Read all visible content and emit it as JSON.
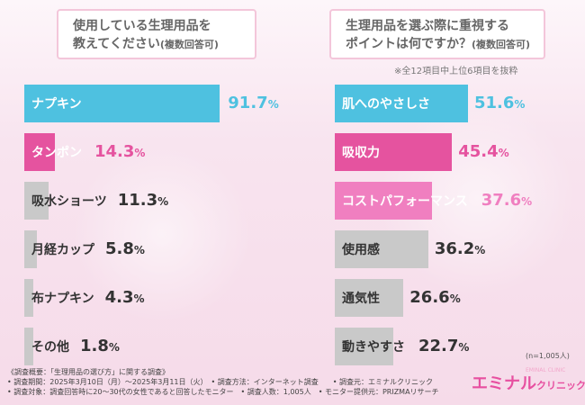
{
  "colors": {
    "blue": "#4ec1e0",
    "magenta": "#e5539f",
    "pink": "#f07fc0",
    "gray": "#c9c9c9",
    "white": "#ffffff",
    "dark_text": "#333333"
  },
  "chart_data": [
    {
      "type": "bar",
      "orientation": "horizontal",
      "title_line1": "使用している生理用品を",
      "title_line2": "教えてください",
      "title_suffix": "(複数回答可)",
      "categories": [
        "ナプキン",
        "タンポン",
        "吸水ショーツ",
        "月経カップ",
        "布ナプキン",
        "その他"
      ],
      "values": [
        91.7,
        14.3,
        11.3,
        5.8,
        4.3,
        1.8
      ],
      "value_labels": [
        "91.7",
        "14.3",
        "11.3",
        "5.8",
        "4.3",
        "1.8"
      ],
      "unit": "%",
      "xlim": [
        0,
        100
      ]
    },
    {
      "type": "bar",
      "orientation": "horizontal",
      "title_line1": "生理用品を選ぶ際に重視する",
      "title_line2": "ポイントは何ですか？",
      "title_suffix": "(複数回答可)",
      "note": "※全12項目中上位6項目を抜粋",
      "categories": [
        "肌へのやさしさ",
        "吸収力",
        "コストパフォーマンス",
        "使用感",
        "通気性",
        "動きやすさ"
      ],
      "values": [
        51.6,
        45.4,
        37.6,
        36.2,
        26.6,
        22.7
      ],
      "value_labels": [
        "51.6",
        "45.4",
        "37.6",
        "36.2",
        "26.6",
        "22.7"
      ],
      "unit": "%",
      "xlim": [
        0,
        100
      ]
    }
  ],
  "sample_note": "(n=1,005人)",
  "survey": {
    "line1": "《調査概要：「生理用品の選び方」に関する調査》",
    "line2": "• 調査期間：2025年3月10日（月）～2025年3月11日（火）　• 調査方法：インターネット調査　　• 調査元：エミナルクリニック",
    "line3": "• 調査対象：調査回答時に20～30代の女性であると回答したモニター　• 調査人数：1,005人　• モニター提供元：PRIZMAリサーチ"
  },
  "logo": {
    "main": "エミナル",
    "sub": "クリニック",
    "tiny": "EMINAL CLINIC"
  }
}
